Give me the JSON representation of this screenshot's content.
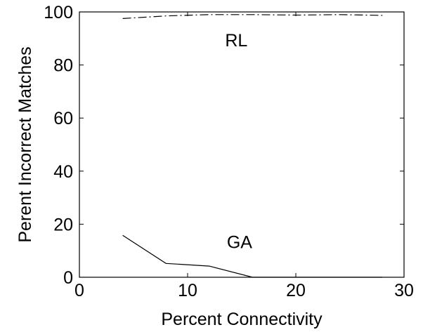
{
  "chart_data": {
    "type": "line",
    "xlabel": "Percent Connectivity",
    "ylabel": "Perent Incorrect Matches",
    "xlim": [
      0,
      30
    ],
    "ylim": [
      0,
      100
    ],
    "xticks": [
      "0",
      "10",
      "20",
      "30"
    ],
    "yticks": [
      "0",
      "20",
      "40",
      "60",
      "80",
      "100"
    ],
    "grid": false,
    "annotations": [
      {
        "text": "RL",
        "x": 14.5,
        "y": 87
      },
      {
        "text": "GA",
        "x": 14.8,
        "y": 11
      }
    ],
    "series": [
      {
        "name": "RL",
        "style": "dash-dot",
        "x": [
          4,
          8,
          12,
          16,
          20,
          24,
          28
        ],
        "y": [
          97.5,
          98.5,
          99,
          99,
          98.8,
          99,
          98.7
        ]
      },
      {
        "name": "GA",
        "style": "solid",
        "x": [
          4,
          8,
          12,
          16,
          20,
          24,
          28
        ],
        "y": [
          15.8,
          5.2,
          4.2,
          0,
          0,
          0,
          0
        ]
      }
    ]
  }
}
